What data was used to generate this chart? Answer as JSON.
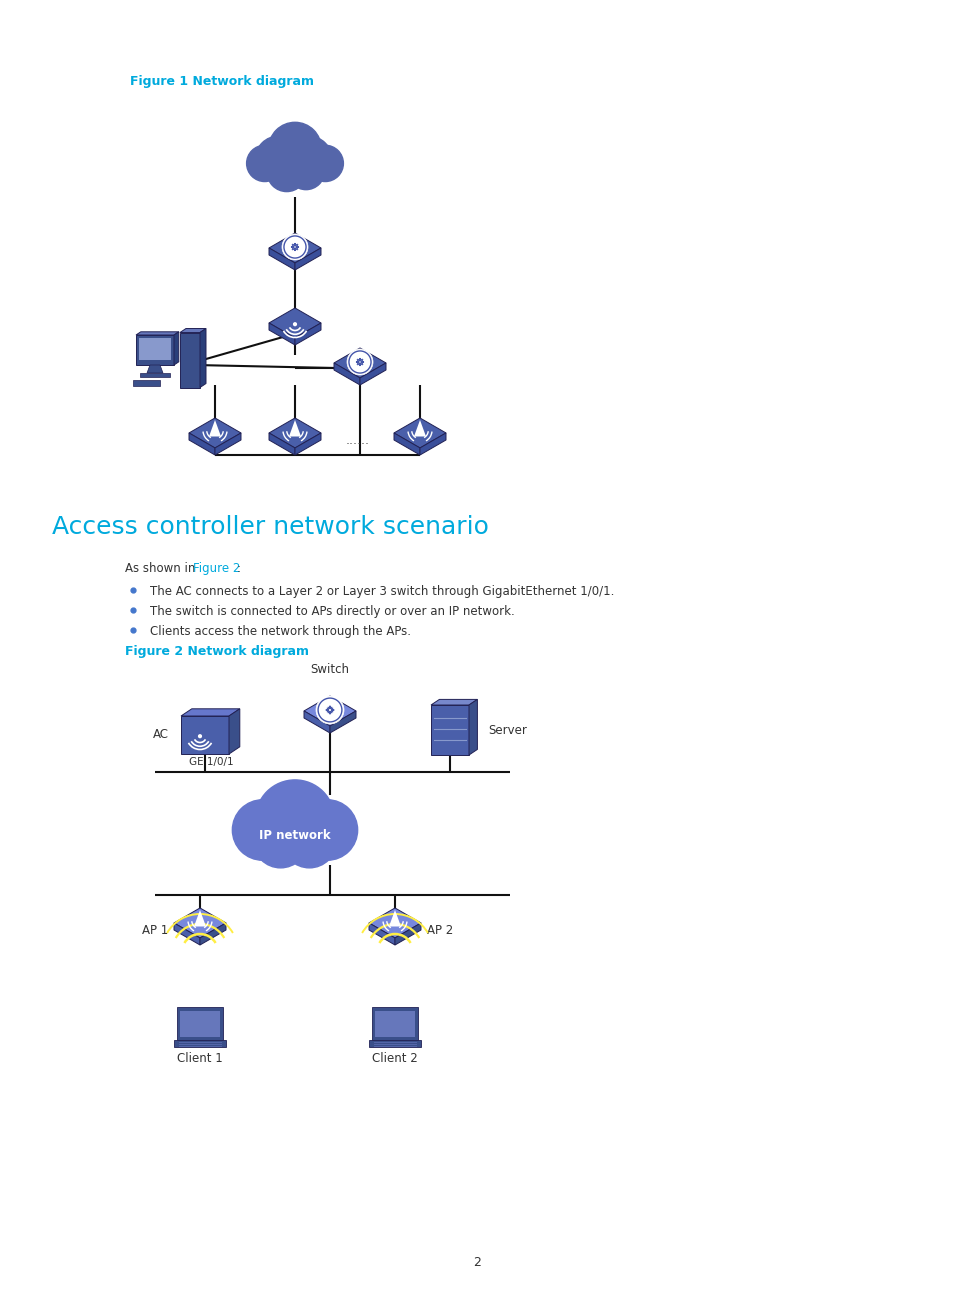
{
  "background_color": "#ffffff",
  "page_width": 9.54,
  "page_height": 12.96,
  "fig1_title": "Figure 1 Network diagram",
  "fig1_title_color": "#00aadd",
  "section_title": "Access controller network scenario",
  "section_title_color": "#00aadd",
  "bullet1": "The AC connects to a Layer 2 or Layer 3 switch through GigabitEthernet 1/0/1.",
  "bullet2": "The switch is connected to APs directly or over an IP network.",
  "bullet3": "Clients access the network through the APs.",
  "fig2_title": "Figure 2 Network diagram",
  "fig2_title_color": "#00aadd",
  "page_num": "2",
  "line_color": "#111111",
  "node_blue_dark": "#3a4f9a",
  "node_blue_mid": "#4a5faa",
  "node_blue_light": "#6677bb",
  "cloud_blue": "#5566aa"
}
